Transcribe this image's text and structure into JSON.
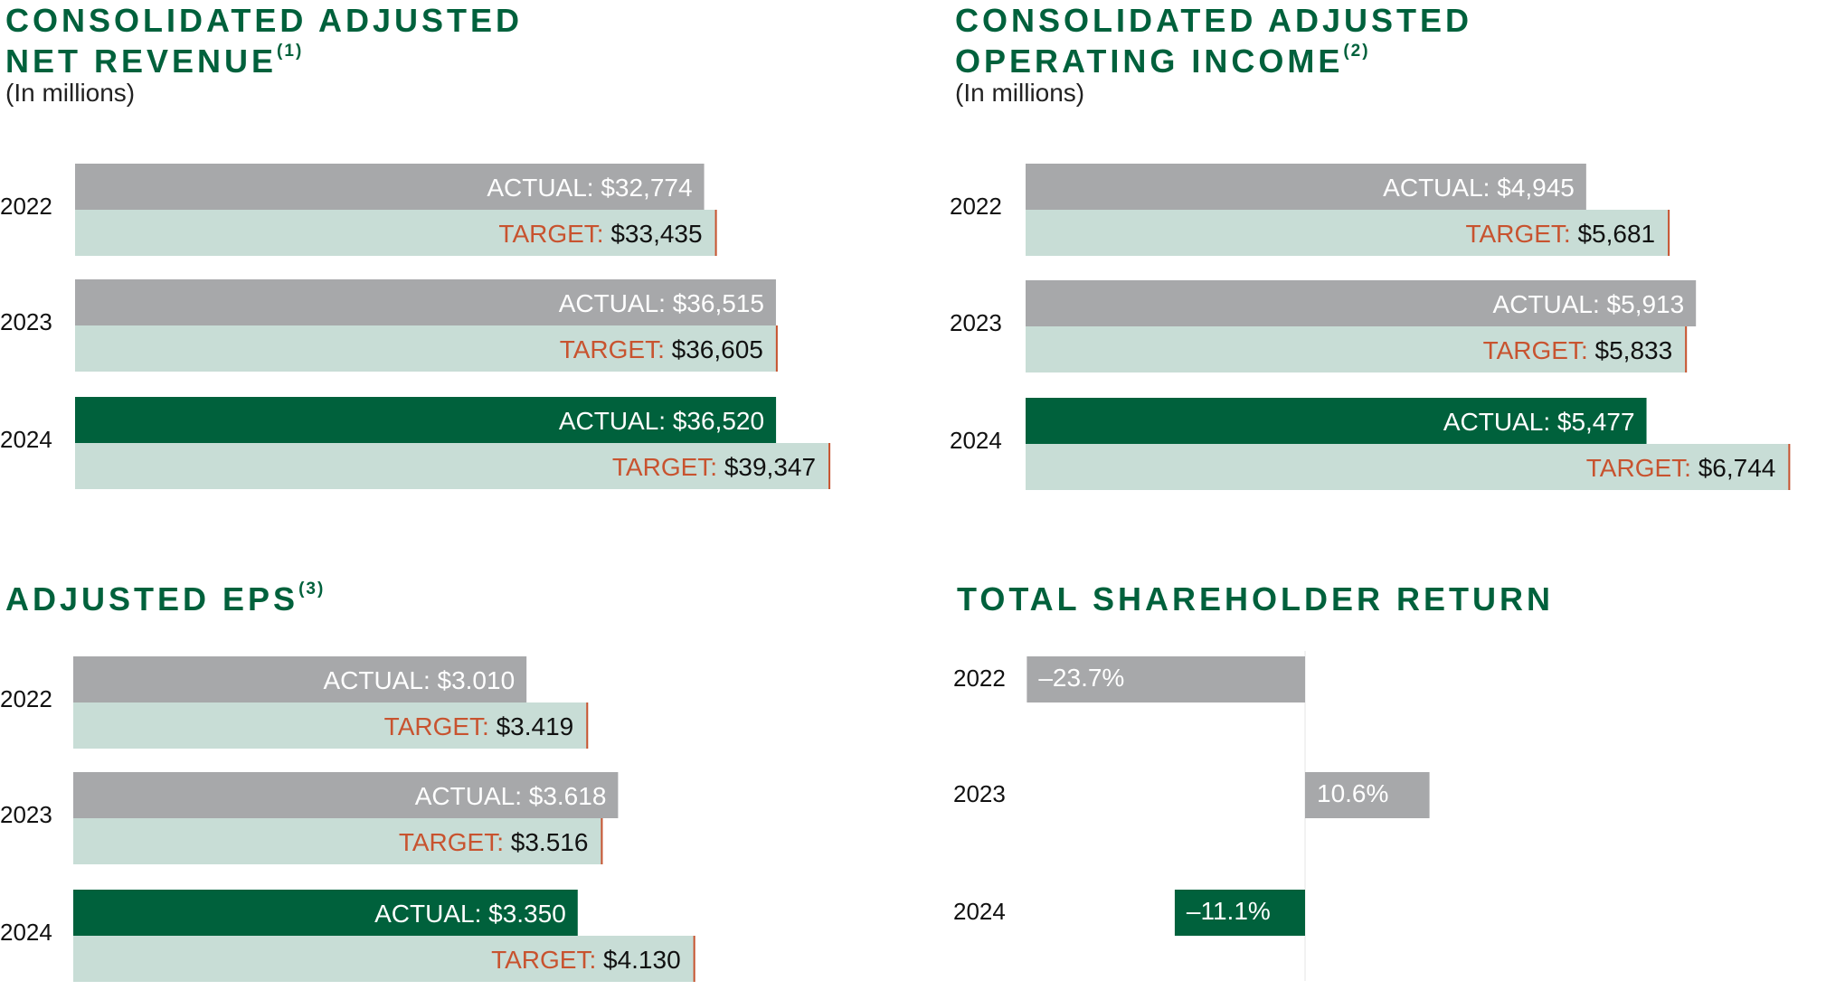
{
  "colors": {
    "title": "#00613c",
    "actual_prior": "#a7a8aa",
    "actual_current": "#00613c",
    "target_bar": "#c8ddd6",
    "target_marker": "#c8532f",
    "target_label": "#c8532f"
  },
  "chart_data": [
    {
      "id": "revenue",
      "type": "bar",
      "title_line1": "CONSOLIDATED ADJUSTED",
      "title_line2": "NET REVENUE",
      "footnote": "(1)",
      "subtitle": "(In millions)",
      "categories": [
        "2022",
        "2023",
        "2024"
      ],
      "series": [
        {
          "name": "ACTUAL",
          "values": [
            32774,
            36515,
            36520
          ],
          "labels": [
            "$32,774",
            "$36,515",
            "$36,520"
          ]
        },
        {
          "name": "TARGET",
          "values": [
            33435,
            36605,
            39347
          ],
          "labels": [
            "$33,435",
            "$36,605",
            "$39,347"
          ]
        }
      ],
      "actual_prefix": "ACTUAL: ",
      "target_prefix": "TARGET: "
    },
    {
      "id": "opincome",
      "type": "bar",
      "title_line1": "CONSOLIDATED ADJUSTED",
      "title_line2": "OPERATING INCOME",
      "footnote": "(2)",
      "subtitle": "(In millions)",
      "categories": [
        "2022",
        "2023",
        "2024"
      ],
      "series": [
        {
          "name": "ACTUAL",
          "values": [
            4945,
            5913,
            5477
          ],
          "labels": [
            "$4,945",
            "$5,913",
            "$5,477"
          ]
        },
        {
          "name": "TARGET",
          "values": [
            5681,
            5833,
            6744
          ],
          "labels": [
            "$5,681",
            "$5,833",
            "$6,744"
          ]
        }
      ],
      "actual_prefix": "ACTUAL: ",
      "target_prefix": "TARGET: "
    },
    {
      "id": "eps",
      "type": "bar",
      "title_line1": "ADJUSTED EPS",
      "footnote": "(3)",
      "categories": [
        "2022",
        "2023",
        "2024"
      ],
      "series": [
        {
          "name": "ACTUAL",
          "values": [
            3.01,
            3.618,
            3.35
          ],
          "labels": [
            "$3.010",
            "$3.618",
            "$3.350"
          ]
        },
        {
          "name": "TARGET",
          "values": [
            3.419,
            3.516,
            4.13
          ],
          "labels": [
            "$3.419",
            "$3.516",
            "$4.130"
          ]
        }
      ],
      "actual_prefix": "ACTUAL: ",
      "target_prefix": "TARGET: "
    },
    {
      "id": "tsr",
      "type": "bar",
      "title_line1": "TOTAL SHAREHOLDER RETURN",
      "categories": [
        "2022",
        "2023",
        "2024"
      ],
      "series": [
        {
          "name": "TSR",
          "values": [
            -23.7,
            10.6,
            -11.1
          ],
          "labels": [
            "–23.7%",
            "10.6%",
            "–11.1%"
          ]
        }
      ]
    }
  ]
}
